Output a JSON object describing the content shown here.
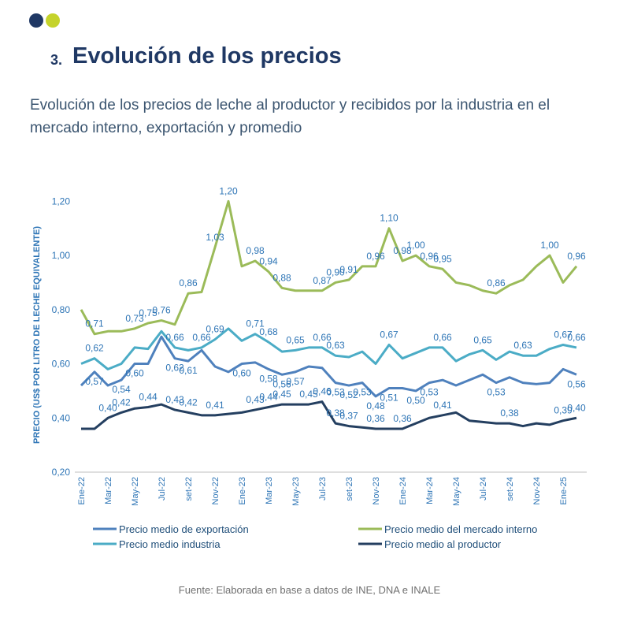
{
  "header": {
    "number": "3.",
    "title": "Evolución de los precios"
  },
  "subtitle": "Evolución de los precios de leche al productor y recibidos por la industria en el mercado interno, exportación y promedio",
  "source": "Fuente: Elaborada en base a datos de INE, DNA e INALE",
  "chart_data": {
    "type": "line",
    "y_label": "PRECIO (US$ POR LITRO DE LECHE EQUIVALENTE)",
    "categories": [
      "Ene-22",
      null,
      "Mar-22",
      null,
      "May-22",
      null,
      "Jul-22",
      null,
      "set-22",
      null,
      "Nov-22",
      null,
      "Ene-23",
      null,
      "Mar-23",
      null,
      "May-23",
      null,
      "Jul-23",
      null,
      "set-23",
      null,
      "Nov-23",
      null,
      "Ene-24",
      null,
      "Mar-24",
      null,
      "May-24",
      null,
      "Jul-24",
      null,
      "set-24",
      null,
      "Nov-24",
      null,
      "Ene-25",
      null
    ],
    "ylim": [
      0.2,
      1.3
    ],
    "yticks": [
      {
        "value": 0.2,
        "label": "0,20"
      },
      {
        "value": 0.4,
        "label": "0,40"
      },
      {
        "value": 0.6,
        "label": "0,60"
      },
      {
        "value": 0.8,
        "label": "0,80"
      },
      {
        "value": 1.0,
        "label": "1,00"
      },
      {
        "value": 1.2,
        "label": "1,20"
      }
    ],
    "grid": false,
    "series": [
      {
        "name": "Precio medio de exportación",
        "color": "#4f81bd",
        "values": [
          0.52,
          0.57,
          0.52,
          0.54,
          0.6,
          0.6,
          0.7,
          0.62,
          0.61,
          0.65,
          0.59,
          0.57,
          0.6,
          0.605,
          0.58,
          0.56,
          0.57,
          0.59,
          0.585,
          0.53,
          0.52,
          0.53,
          0.48,
          0.51,
          0.51,
          0.5,
          0.53,
          0.54,
          0.52,
          0.54,
          0.56,
          0.53,
          0.55,
          0.53,
          0.525,
          0.53,
          0.58,
          0.56
        ],
        "value_labels": [
          null,
          "0,57",
          null,
          "0,54",
          "0,60",
          null,
          null,
          "0,62",
          "0,61",
          null,
          null,
          null,
          "0,60",
          null,
          "0,58",
          "0,56",
          "0,57",
          null,
          null,
          "0,53",
          "0,52",
          "0,53",
          "0,48",
          "0,51",
          null,
          "0,50",
          "0,53",
          null,
          null,
          null,
          null,
          "0,53",
          null,
          null,
          null,
          null,
          null,
          "0,56"
        ]
      },
      {
        "name": "Precio medio del mercado interno",
        "color": "#9bbb59",
        "values": [
          0.8,
          0.71,
          0.72,
          0.72,
          0.73,
          0.75,
          0.76,
          0.745,
          0.86,
          0.865,
          1.03,
          1.2,
          0.96,
          0.98,
          0.94,
          0.88,
          0.87,
          0.87,
          0.87,
          0.9,
          0.91,
          0.96,
          0.96,
          1.1,
          0.98,
          1.0,
          0.96,
          0.95,
          0.9,
          0.89,
          0.87,
          0.86,
          0.89,
          0.91,
          0.96,
          1.0,
          0.9,
          0.96
        ],
        "value_labels": [
          null,
          "0,71",
          null,
          null,
          "0,73",
          "0,75",
          "0,76",
          null,
          "0,86",
          null,
          "1,03",
          "1,20",
          null,
          "0,98",
          "0,94",
          "0,88",
          null,
          null,
          "0,87",
          "0,90",
          "0,91",
          null,
          "0,96",
          "1,10",
          "0,98",
          "1,00",
          "0,96",
          "0,95",
          null,
          null,
          null,
          "0,86",
          null,
          null,
          null,
          "1,00",
          null,
          "0,96"
        ]
      },
      {
        "name": "Precio medio industria",
        "color": "#4bacc6",
        "values": [
          0.6,
          0.62,
          0.58,
          0.6,
          0.66,
          0.655,
          0.72,
          0.66,
          0.65,
          0.66,
          0.69,
          0.73,
          0.685,
          0.71,
          0.68,
          0.645,
          0.65,
          0.66,
          0.66,
          0.63,
          0.625,
          0.645,
          0.6,
          0.67,
          0.62,
          0.64,
          0.66,
          0.66,
          0.61,
          0.635,
          0.65,
          0.615,
          0.645,
          0.63,
          0.63,
          0.655,
          0.67,
          0.66
        ],
        "value_labels": [
          null,
          "0,62",
          null,
          null,
          null,
          null,
          null,
          "0,66",
          null,
          "0,66",
          "0,69",
          null,
          null,
          "0,71",
          "0,68",
          null,
          "0,65",
          null,
          "0,66",
          "0,63",
          null,
          null,
          null,
          "0,67",
          null,
          null,
          null,
          "0,66",
          null,
          null,
          "0,65",
          null,
          null,
          "0,63",
          null,
          null,
          "0,67",
          "0,66"
        ]
      },
      {
        "name": "Precio medio al productor",
        "color": "#243f60",
        "values": [
          0.36,
          0.36,
          0.4,
          0.42,
          0.435,
          0.44,
          0.45,
          0.43,
          0.42,
          0.41,
          0.41,
          0.415,
          0.42,
          0.43,
          0.44,
          0.45,
          0.45,
          0.45,
          0.46,
          0.38,
          0.37,
          0.365,
          0.36,
          0.36,
          0.36,
          0.38,
          0.4,
          0.41,
          0.42,
          0.39,
          0.385,
          0.38,
          0.38,
          0.37,
          0.38,
          0.375,
          0.39,
          0.4
        ],
        "value_labels": [
          null,
          null,
          "0,40",
          "0,42",
          null,
          "0,44",
          null,
          "0,43",
          "0,42",
          null,
          "0,41",
          null,
          null,
          "0,43",
          "0,44",
          "0,45",
          null,
          "0,45",
          "0,46",
          "0,38",
          "0,37",
          null,
          "0,36",
          null,
          "0,36",
          null,
          null,
          "0,41",
          null,
          null,
          null,
          null,
          "0,38",
          null,
          null,
          null,
          "0,39",
          "0,40"
        ]
      }
    ]
  }
}
